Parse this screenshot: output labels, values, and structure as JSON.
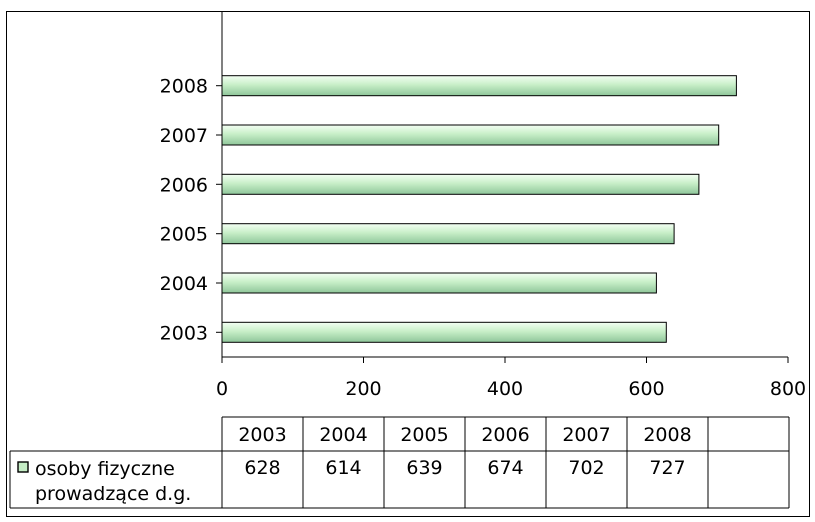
{
  "chart_data": {
    "type": "bar",
    "orientation": "horizontal",
    "title": "",
    "xlabel": "",
    "ylabel": "",
    "categories": [
      "2003",
      "2004",
      "2005",
      "2006",
      "2007",
      "2008"
    ],
    "series": [
      {
        "name": "osoby fizyczne prowadzące d.g.",
        "values": [
          628,
          614,
          639,
          674,
          702,
          727
        ],
        "color": "#c4ecc4"
      }
    ],
    "xlim": [
      0,
      800
    ],
    "xticks": [
      "0",
      "200",
      "400",
      "600",
      "800"
    ],
    "grid": false,
    "legend_position": "in-data-table",
    "data_table": {
      "header": [
        "2003",
        "2004",
        "2005",
        "2006",
        "2007",
        "2008"
      ],
      "legend_label_lines": [
        "osoby fizyczne",
        "prowadzące d.g."
      ],
      "values": [
        "628",
        "614",
        "639",
        "674",
        "702",
        "727"
      ]
    }
  }
}
